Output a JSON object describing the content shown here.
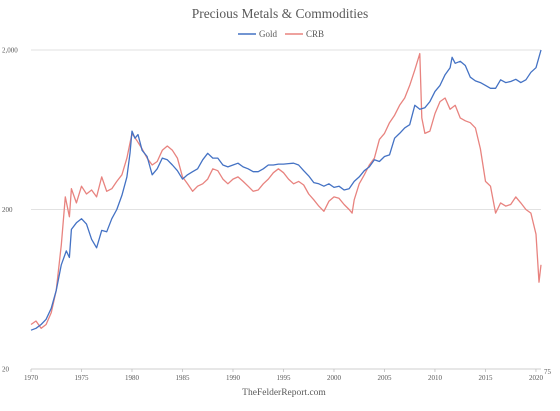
{
  "chart_data": {
    "type": "line",
    "title": "Precious Metals & Commodities",
    "source": "TheFelderReport.com",
    "yscale": "log",
    "ylim": [
      20,
      2000
    ],
    "yticks": [
      20,
      200,
      2000
    ],
    "ytick_labels": [
      "20",
      "200",
      "2,000"
    ],
    "xlim": [
      1970,
      2020.5
    ],
    "xticks": [
      1970,
      1975,
      1980,
      1985,
      1990,
      1995,
      2000,
      2005,
      2010,
      2015,
      2020
    ],
    "xtick_labels": [
      "1970",
      "1975",
      "1980",
      "1985",
      "1990",
      "1995",
      "2000",
      "2005",
      "2010",
      "2015",
      "2020"
    ],
    "right_axis_label": "75",
    "legend_position": "top-center",
    "grid": "horizontal",
    "colors": {
      "Gold": "#4472c4",
      "CRB": "#e8837f"
    },
    "series": [
      {
        "name": "Gold",
        "x": [
          1970.0,
          1970.5,
          1971.0,
          1971.5,
          1972.0,
          1972.5,
          1973.0,
          1973.5,
          1973.8,
          1974.0,
          1974.5,
          1975.0,
          1975.5,
          1976.0,
          1976.5,
          1977.0,
          1977.5,
          1978.0,
          1978.5,
          1979.0,
          1979.5,
          1979.8,
          1980.0,
          1980.3,
          1980.6,
          1981.0,
          1981.5,
          1982.0,
          1982.5,
          1983.0,
          1983.5,
          1984.0,
          1984.5,
          1985.0,
          1985.5,
          1986.0,
          1986.5,
          1987.0,
          1987.5,
          1988.0,
          1988.5,
          1989.0,
          1989.5,
          1990.0,
          1990.5,
          1991.0,
          1991.5,
          1992.0,
          1992.5,
          1993.0,
          1993.5,
          1994.0,
          1994.5,
          1995.0,
          1995.5,
          1996.0,
          1996.5,
          1997.0,
          1997.5,
          1998.0,
          1998.5,
          1999.0,
          1999.5,
          2000.0,
          2000.5,
          2001.0,
          2001.5,
          2002.0,
          2002.5,
          2003.0,
          2003.5,
          2004.0,
          2004.5,
          2005.0,
          2005.5,
          2006.0,
          2006.5,
          2007.0,
          2007.5,
          2008.0,
          2008.5,
          2009.0,
          2009.5,
          2010.0,
          2010.5,
          2011.0,
          2011.5,
          2011.7,
          2012.0,
          2012.5,
          2013.0,
          2013.5,
          2014.0,
          2014.5,
          2015.0,
          2015.5,
          2016.0,
          2016.5,
          2017.0,
          2017.5,
          2018.0,
          2018.5,
          2019.0,
          2019.5,
          2020.0,
          2020.5
        ],
        "y": [
          35,
          36,
          38,
          41,
          48,
          62,
          90,
          110,
          100,
          150,
          165,
          175,
          162,
          130,
          115,
          148,
          145,
          175,
          200,
          245,
          320,
          450,
          620,
          560,
          590,
          470,
          430,
          330,
          360,
          420,
          410,
          380,
          350,
          310,
          330,
          345,
          360,
          410,
          450,
          420,
          420,
          380,
          370,
          380,
          390,
          370,
          360,
          345,
          345,
          360,
          380,
          380,
          385,
          385,
          388,
          390,
          380,
          350,
          325,
          295,
          290,
          280,
          290,
          275,
          280,
          265,
          270,
          300,
          320,
          350,
          370,
          410,
          400,
          430,
          440,
          560,
          600,
          650,
          680,
          900,
          850,
          870,
          950,
          1100,
          1200,
          1400,
          1550,
          1800,
          1650,
          1700,
          1600,
          1350,
          1280,
          1250,
          1200,
          1150,
          1150,
          1300,
          1250,
          1270,
          1310,
          1250,
          1300,
          1450,
          1550,
          2000
        ]
      },
      {
        "name": "CRB",
        "x": [
          1970.0,
          1970.5,
          1971.0,
          1971.5,
          1972.0,
          1972.5,
          1973.0,
          1973.4,
          1973.8,
          1974.0,
          1974.5,
          1975.0,
          1975.5,
          1976.0,
          1976.5,
          1977.0,
          1977.5,
          1978.0,
          1978.5,
          1979.0,
          1979.5,
          1980.0,
          1980.5,
          1981.0,
          1981.5,
          1982.0,
          1982.5,
          1983.0,
          1983.5,
          1984.0,
          1984.5,
          1985.0,
          1985.5,
          1986.0,
          1986.5,
          1987.0,
          1987.5,
          1988.0,
          1988.5,
          1989.0,
          1989.5,
          1990.0,
          1990.5,
          1991.0,
          1991.5,
          1992.0,
          1992.5,
          1993.0,
          1993.5,
          1994.0,
          1994.5,
          1995.0,
          1995.5,
          1996.0,
          1996.5,
          1997.0,
          1997.5,
          1998.0,
          1998.5,
          1999.0,
          1999.5,
          2000.0,
          2000.5,
          2001.0,
          2001.5,
          2001.8,
          2002.0,
          2002.5,
          2003.0,
          2003.5,
          2004.0,
          2004.5,
          2005.0,
          2005.5,
          2006.0,
          2006.5,
          2007.0,
          2007.5,
          2008.0,
          2008.5,
          2008.7,
          2009.0,
          2009.5,
          2010.0,
          2010.5,
          2011.0,
          2011.5,
          2012.0,
          2012.5,
          2013.0,
          2013.5,
          2014.0,
          2014.5,
          2015.0,
          2015.5,
          2016.0,
          2016.5,
          2017.0,
          2017.5,
          2018.0,
          2018.5,
          2019.0,
          2019.5,
          2020.0,
          2020.3,
          2020.5
        ],
        "y": [
          38,
          40,
          36,
          38,
          45,
          62,
          120,
          240,
          180,
          270,
          220,
          280,
          250,
          265,
          240,
          320,
          260,
          270,
          300,
          330,
          420,
          600,
          540,
          480,
          420,
          380,
          400,
          470,
          500,
          470,
          420,
          320,
          290,
          260,
          280,
          290,
          310,
          360,
          350,
          310,
          290,
          310,
          320,
          300,
          280,
          260,
          265,
          290,
          310,
          340,
          360,
          340,
          310,
          290,
          300,
          285,
          250,
          230,
          210,
          195,
          225,
          240,
          235,
          215,
          200,
          190,
          230,
          290,
          330,
          380,
          420,
          550,
          600,
          700,
          780,
          900,
          1000,
          1200,
          1500,
          1900,
          750,
          600,
          620,
          800,
          950,
          1000,
          850,
          900,
          750,
          720,
          700,
          650,
          480,
          300,
          280,
          190,
          220,
          210,
          215,
          240,
          220,
          200,
          190,
          140,
          70,
          90
        ]
      }
    ]
  }
}
